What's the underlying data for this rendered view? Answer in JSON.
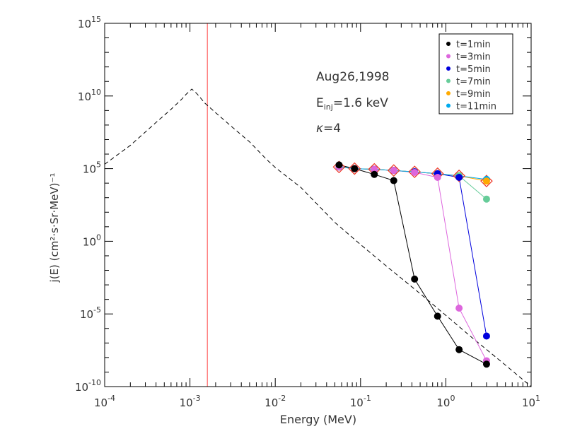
{
  "chart_data": {
    "type": "line",
    "title": "",
    "xlabel": "Energy (MeV)",
    "ylabel": "j(E) (cm²·s·Sr·MeV)⁻¹",
    "xscale": "log",
    "yscale": "log",
    "xlim": [
      0.0001,
      10
    ],
    "ylim": [
      1e-10,
      1000000000000000.0
    ],
    "x_ticks": [
      {
        "value": 0.0001,
        "base": "10",
        "exp": "-4"
      },
      {
        "value": 0.001,
        "base": "10",
        "exp": "-3"
      },
      {
        "value": 0.01,
        "base": "10",
        "exp": "-2"
      },
      {
        "value": 0.1,
        "base": "10",
        "exp": "-1"
      },
      {
        "value": 1,
        "base": "10",
        "exp": "0"
      },
      {
        "value": 10,
        "base": "10",
        "exp": "1"
      }
    ],
    "y_ticks": [
      {
        "value": 1e-10,
        "base": "10",
        "exp": "-10"
      },
      {
        "value": 1e-05,
        "base": "10",
        "exp": "-5"
      },
      {
        "value": 1,
        "base": "10",
        "exp": "0"
      },
      {
        "value": 100000.0,
        "base": "10",
        "exp": "5"
      },
      {
        "value": 10000000000.0,
        "base": "10",
        "exp": "10"
      },
      {
        "value": 1000000000000000.0,
        "base": "10",
        "exp": "15"
      }
    ],
    "legend_position": "top-right",
    "annotations": {
      "date": "Aug26,1998",
      "einj_prefix": "E",
      "einj_sub": "inj",
      "einj_value": "=1.6 keV",
      "kappa_symbol": "κ",
      "kappa_value": "=4"
    },
    "vertical_line": {
      "x": 0.0016,
      "color": "#ff6666"
    },
    "dashed_curve": {
      "color": "#000000",
      "x": [
        0.0001,
        0.0002,
        0.0004,
        0.0006,
        0.0008,
        0.0009,
        0.00105,
        0.0012,
        0.0015,
        0.002,
        0.003,
        0.005,
        0.008,
        0.01,
        0.02,
        0.05,
        0.1,
        0.2,
        0.5,
        1,
        2,
        5,
        10
      ],
      "y": [
        200000.0,
        4000000.0,
        150000000.0,
        1200000000.0,
        6000000000.0,
        13000000000.0,
        30000000000.0,
        15000000000.0,
        3200000000.0,
        700000000.0,
        90000000.0,
        7000000.0,
        400000.0,
        120000.0,
        5000.0,
        20.0,
        0.6,
        0.02,
        0.00025,
        8e-06,
        2.5e-07,
        3e-09,
        1e-10
      ]
    },
    "series": [
      {
        "name": "t=1min",
        "color": "#000000",
        "x": [
          0.056,
          0.085,
          0.145,
          0.245,
          0.43,
          0.8,
          1.43,
          3.0
        ],
        "y": [
          180000.0,
          100000.0,
          40000.0,
          15000.0,
          0.0025,
          7e-06,
          3.5e-08,
          3.5e-09
        ]
      },
      {
        "name": "t=3min",
        "color": "#dd66dd",
        "x": [
          0.056,
          0.085,
          0.145,
          0.245,
          0.43,
          0.8,
          1.43,
          3.0
        ],
        "y": [
          130000.0,
          100000.0,
          90000.0,
          75000.0,
          55000.0,
          25000.0,
          2.5e-05,
          6e-09
        ]
      },
      {
        "name": "t=5min",
        "color": "#0000dd",
        "x": [
          0.056,
          0.085,
          0.145,
          0.245,
          0.43,
          0.8,
          1.43,
          3.0
        ],
        "y": [
          130000.0,
          100000.0,
          90000.0,
          75000.0,
          60000.0,
          45000.0,
          25000.0,
          3e-07
        ]
      },
      {
        "name": "t=7min",
        "color": "#66cc99",
        "x": [
          0.056,
          0.085,
          0.145,
          0.245,
          0.43,
          0.8,
          1.43,
          3.0
        ],
        "y": [
          130000.0,
          100000.0,
          90000.0,
          75000.0,
          60000.0,
          45000.0,
          32000.0,
          800.0
        ]
      },
      {
        "name": "t=9min",
        "color": "#ffaa00",
        "x": [
          0.056,
          0.085,
          0.145,
          0.245,
          0.43,
          0.8,
          1.43,
          3.0
        ],
        "y": [
          130000.0,
          100000.0,
          90000.0,
          75000.0,
          60000.0,
          45000.0,
          32000.0,
          14000.0
        ]
      },
      {
        "name": "t=11min",
        "color": "#00aaee",
        "x": [
          0.056,
          0.085,
          0.145,
          0.245,
          0.43,
          0.8,
          1.43,
          3.0
        ],
        "y": [
          130000.0,
          100000.0,
          90000.0,
          75000.0,
          60000.0,
          45000.0,
          32000.0,
          18000.0
        ]
      }
    ],
    "diamond_markers": {
      "color": "#ee3322",
      "x": [
        0.056,
        0.085,
        0.145,
        0.245,
        0.43,
        0.8,
        1.43,
        3.0
      ],
      "y": [
        130000.0,
        100000.0,
        90000.0,
        75000.0,
        60000.0,
        45000.0,
        32000.0,
        14000.0
      ]
    }
  }
}
